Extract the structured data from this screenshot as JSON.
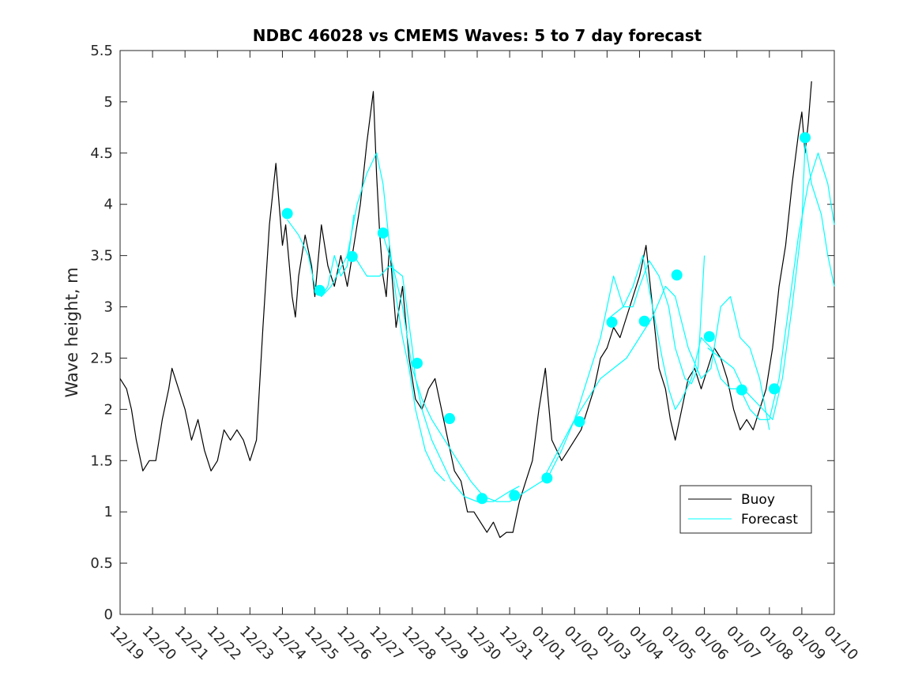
{
  "chart_data": {
    "type": "line",
    "title": "NDBC 46028 vs CMEMS Waves: 5 to 7 day forecast",
    "xlabel": "",
    "ylabel": "Wave height, m",
    "ylim": [
      0,
      5.5
    ],
    "yticks": [
      "0",
      "0.5",
      "1",
      "1.5",
      "2",
      "2.5",
      "3",
      "3.5",
      "4",
      "4.5",
      "5",
      "5.5"
    ],
    "xlim": [
      0,
      22
    ],
    "xticks": [
      "12/19",
      "12/20",
      "12/21",
      "12/22",
      "12/23",
      "12/24",
      "12/25",
      "12/26",
      "12/27",
      "12/28",
      "12/29",
      "12/30",
      "12/31",
      "01/01",
      "01/02",
      "01/03",
      "01/04",
      "01/05",
      "01/06",
      "01/07",
      "01/08",
      "01/09",
      "01/10"
    ],
    "legend": {
      "location": "lower-right",
      "entries": [
        "Buoy",
        "Forecast"
      ]
    },
    "colors": {
      "buoy": "#000000",
      "forecast": "#00FFFF",
      "marker": "#00FFFF",
      "axes": "#262626"
    },
    "series": [
      {
        "name": "Buoy",
        "x": [
          0,
          0.2,
          0.35,
          0.5,
          0.7,
          0.9,
          1.1,
          1.3,
          1.5,
          1.6,
          1.8,
          2.0,
          2.2,
          2.4,
          2.6,
          2.8,
          3.0,
          3.2,
          3.4,
          3.6,
          3.8,
          4.0,
          4.2,
          4.4,
          4.6,
          4.8,
          4.9,
          5.0,
          5.1,
          5.3,
          5.4,
          5.5,
          5.7,
          5.9,
          6.0,
          6.2,
          6.4,
          6.6,
          6.8,
          7.0,
          7.2,
          7.4,
          7.6,
          7.8,
          7.9,
          8.0,
          8.1,
          8.2,
          8.3,
          8.5,
          8.7,
          8.9,
          9.1,
          9.3,
          9.5,
          9.7,
          9.9,
          10.1,
          10.3,
          10.5,
          10.7,
          10.9,
          11.1,
          11.3,
          11.5,
          11.7,
          11.9,
          12.1,
          12.3,
          12.5,
          12.7,
          12.9,
          13.1,
          13.3,
          13.45,
          13.6,
          13.8,
          14.0,
          14.2,
          14.4,
          14.6,
          14.8,
          15.0,
          15.2,
          15.4,
          15.6,
          15.8,
          16.0,
          16.2,
          16.4,
          16.6,
          16.8,
          16.95,
          17.1,
          17.3,
          17.5,
          17.7,
          17.9,
          18.1,
          18.3,
          18.5,
          18.7,
          18.9,
          19.1,
          19.3,
          19.5,
          19.7,
          19.9,
          20.1,
          20.3,
          20.5,
          20.7,
          20.9,
          21.0,
          21.1,
          21.2,
          21.3
        ],
        "values": [
          2.3,
          2.2,
          2.0,
          1.7,
          1.4,
          1.5,
          1.5,
          1.9,
          2.2,
          2.4,
          2.2,
          2.0,
          1.7,
          1.9,
          1.6,
          1.4,
          1.5,
          1.8,
          1.7,
          1.8,
          1.7,
          1.5,
          1.7,
          2.8,
          3.8,
          4.4,
          4.0,
          3.6,
          3.8,
          3.1,
          2.9,
          3.3,
          3.7,
          3.4,
          3.1,
          3.8,
          3.4,
          3.2,
          3.5,
          3.2,
          3.6,
          4.0,
          4.6,
          5.1,
          4.3,
          3.7,
          3.3,
          3.1,
          3.6,
          2.8,
          3.2,
          2.5,
          2.1,
          2.0,
          2.2,
          2.3,
          2.0,
          1.7,
          1.4,
          1.3,
          1.0,
          1.0,
          0.9,
          0.8,
          0.9,
          0.75,
          0.8,
          0.8,
          1.1,
          1.3,
          1.5,
          2.0,
          2.4,
          1.7,
          1.6,
          1.5,
          1.6,
          1.7,
          1.8,
          2.0,
          2.2,
          2.5,
          2.6,
          2.8,
          2.7,
          2.9,
          3.1,
          3.3,
          3.6,
          3.0,
          2.4,
          2.2,
          1.9,
          1.7,
          2.0,
          2.3,
          2.4,
          2.2,
          2.4,
          2.6,
          2.5,
          2.3,
          2.0,
          1.8,
          1.9,
          1.8,
          2.0,
          2.2,
          2.6,
          3.2,
          3.6,
          4.2,
          4.7,
          4.9,
          4.5,
          4.8,
          5.2
        ]
      },
      {
        "name": "Forecast",
        "segments": [
          {
            "x": [
              5.15,
              5.5,
              5.8,
              6.0,
              6.2,
              6.4,
              6.6,
              6.8,
              7.0,
              7.2
            ],
            "values": [
              3.85,
              3.7,
              3.5,
              3.2,
              3.1,
              3.2,
              3.5,
              3.3,
              3.4,
              3.9
            ]
          },
          {
            "x": [
              6.2,
              6.5,
              7.0,
              7.3,
              7.6,
              7.9,
              8.1,
              8.3,
              8.5,
              8.7,
              8.9,
              9.1,
              9.4,
              9.7,
              10.0
            ],
            "values": [
              3.1,
              3.2,
              3.5,
              4.0,
              4.3,
              4.5,
              4.2,
              3.6,
              3.1,
              2.7,
              2.4,
              2.0,
              1.6,
              1.4,
              1.3
            ]
          },
          {
            "x": [
              7.2,
              7.6,
              8.0,
              8.3,
              8.7,
              9.0,
              9.1,
              9.3,
              9.6,
              9.9,
              10.2,
              10.6,
              11.0,
              11.5,
              12.0,
              12.3
            ],
            "values": [
              3.5,
              3.3,
              3.3,
              3.4,
              3.3,
              2.6,
              2.3,
              2.0,
              1.7,
              1.5,
              1.3,
              1.15,
              1.1,
              1.1,
              1.2,
              1.25
            ]
          },
          {
            "x": [
              8.1,
              8.4,
              8.7,
              9.0,
              9.3,
              9.6,
              10.0,
              10.4,
              10.8,
              11.2,
              11.6,
              12.0
            ],
            "values": [
              3.7,
              3.4,
              3.0,
              2.4,
              2.1,
              1.9,
              1.7,
              1.5,
              1.3,
              1.15,
              1.1,
              1.1
            ]
          },
          {
            "x": [
              12.0,
              12.5,
              13.0,
              13.5,
              14.0,
              14.4,
              14.8,
              15.2,
              15.5,
              15.8,
              16.0,
              16.3,
              16.6,
              16.9,
              17.1,
              17.4,
              17.6,
              17.8,
              18.0
            ],
            "values": [
              1.1,
              1.2,
              1.3,
              1.6,
              1.9,
              2.3,
              2.7,
              3.3,
              3.0,
              3.0,
              3.2,
              3.45,
              3.3,
              3.0,
              2.6,
              2.3,
              2.25,
              2.4,
              3.5
            ]
          },
          {
            "x": [
              13.2,
              13.6,
              14.0,
              14.4,
              14.8,
              15.2,
              15.6,
              16.0,
              16.4,
              16.8,
              17.1,
              17.5,
              17.9,
              18.2,
              18.5,
              18.8,
              19.1,
              19.4,
              19.7,
              20.0
            ],
            "values": [
              1.35,
              1.6,
              1.9,
              2.1,
              2.3,
              2.4,
              2.5,
              2.7,
              2.9,
              3.2,
              3.1,
              2.6,
              2.3,
              2.4,
              3.0,
              3.1,
              2.7,
              2.6,
              2.3,
              1.8
            ]
          },
          {
            "x": [
              15.1,
              15.5,
              15.8,
              16.1,
              16.4,
              16.7,
              16.9,
              17.1,
              17.3,
              17.6,
              17.9,
              18.2,
              18.5,
              18.8,
              19.1,
              19.4,
              19.7,
              20.0,
              20.3,
              20.6,
              20.9,
              21.2,
              21.5,
              21.8,
              22.0
            ],
            "values": [
              2.9,
              3.0,
              3.2,
              3.5,
              3.0,
              2.5,
              2.2,
              2.0,
              2.1,
              2.3,
              2.7,
              2.6,
              2.3,
              2.2,
              2.2,
              2.0,
              1.9,
              1.9,
              2.3,
              3.0,
              3.7,
              4.2,
              4.5,
              4.2,
              3.8
            ]
          },
          {
            "x": [
              18.1,
              18.5,
              18.9,
              19.2,
              19.5,
              19.8,
              20.1,
              20.4,
              20.7,
              21.0,
              21.1,
              21.3,
              21.6,
              21.8,
              22.0
            ],
            "values": [
              2.6,
              2.5,
              2.4,
              2.2,
              2.1,
              2.0,
              1.9,
              2.3,
              3.0,
              3.8,
              4.6,
              4.2,
              3.9,
              3.5,
              3.2
            ]
          }
        ]
      },
      {
        "name": "Forecast markers",
        "x": [
          5.15,
          6.15,
          7.15,
          8.1,
          9.15,
          10.15,
          11.15,
          12.15,
          13.15,
          14.15,
          15.15,
          16.15,
          17.15,
          18.15,
          19.15,
          20.15,
          21.1
        ],
        "values": [
          3.91,
          3.16,
          3.49,
          3.72,
          2.45,
          1.91,
          1.13,
          1.16,
          1.33,
          1.88,
          2.85,
          2.86,
          3.31,
          2.71,
          2.19,
          2.2,
          4.65
        ]
      }
    ]
  }
}
